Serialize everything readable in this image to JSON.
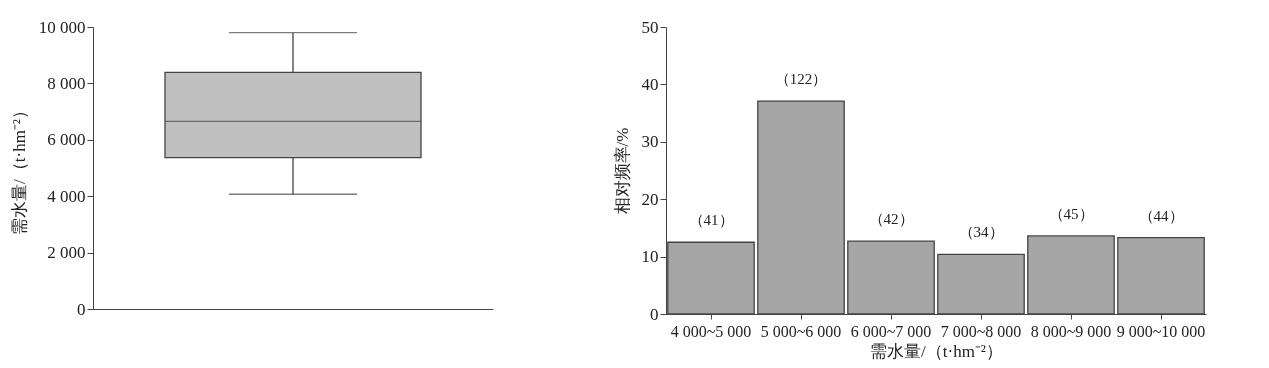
{
  "chart_data": [
    {
      "type": "box",
      "ylabel": "需水量/（t·hm⁻²）",
      "categories": [
        null
      ],
      "color": "#c0c0c0",
      "boxes": [
        {
          "low": 4070,
          "q1": 5370,
          "median": 6650,
          "q3": 8390,
          "high": 9800
        }
      ],
      "ylim": [
        0,
        10000
      ],
      "yticks": [
        0,
        {
          "value": 2000,
          "label": "2 000"
        },
        {
          "value": 4000,
          "label": "4 000"
        },
        {
          "value": 6000,
          "label": "6 000"
        },
        {
          "value": 8000,
          "label": "8 000"
        },
        {
          "value": 10000,
          "label": "10 000"
        }
      ],
      "tick_labels": "y",
      "grid": false
    },
    {
      "type": "bar",
      "xlabel": "需水量/（t·hm⁻²）",
      "ylabel": "相对频率/%",
      "categories": [
        "4 000~5 000",
        "5 000~6 000",
        "6 000~7 000",
        "7 000~8 000",
        "8 000~9 000",
        "9 000~10 000"
      ],
      "values": [
        12.5,
        37.1,
        12.7,
        10.4,
        13.6,
        13.3
      ],
      "color": "#a6a6a6",
      "annotations": [
        {
          "text": "（41）",
          "x": "4 000~5 000",
          "y": 12.5
        },
        {
          "text": "（122）",
          "x": "5 000~6 000",
          "y": 37.1
        },
        {
          "text": "（42）",
          "x": "6 000~7 000",
          "y": 12.7
        },
        {
          "text": "（34）",
          "x": "7 000~8 000",
          "y": 10.4
        },
        {
          "text": "（45）",
          "x": "8 000~9 000",
          "y": 13.6
        },
        {
          "text": "（44）",
          "x": "9 000~10 000",
          "y": 13.3
        }
      ],
      "ylim": [
        0,
        50
      ],
      "yticks": [
        0,
        10,
        20,
        30,
        40,
        50
      ],
      "grid": false
    }
  ]
}
